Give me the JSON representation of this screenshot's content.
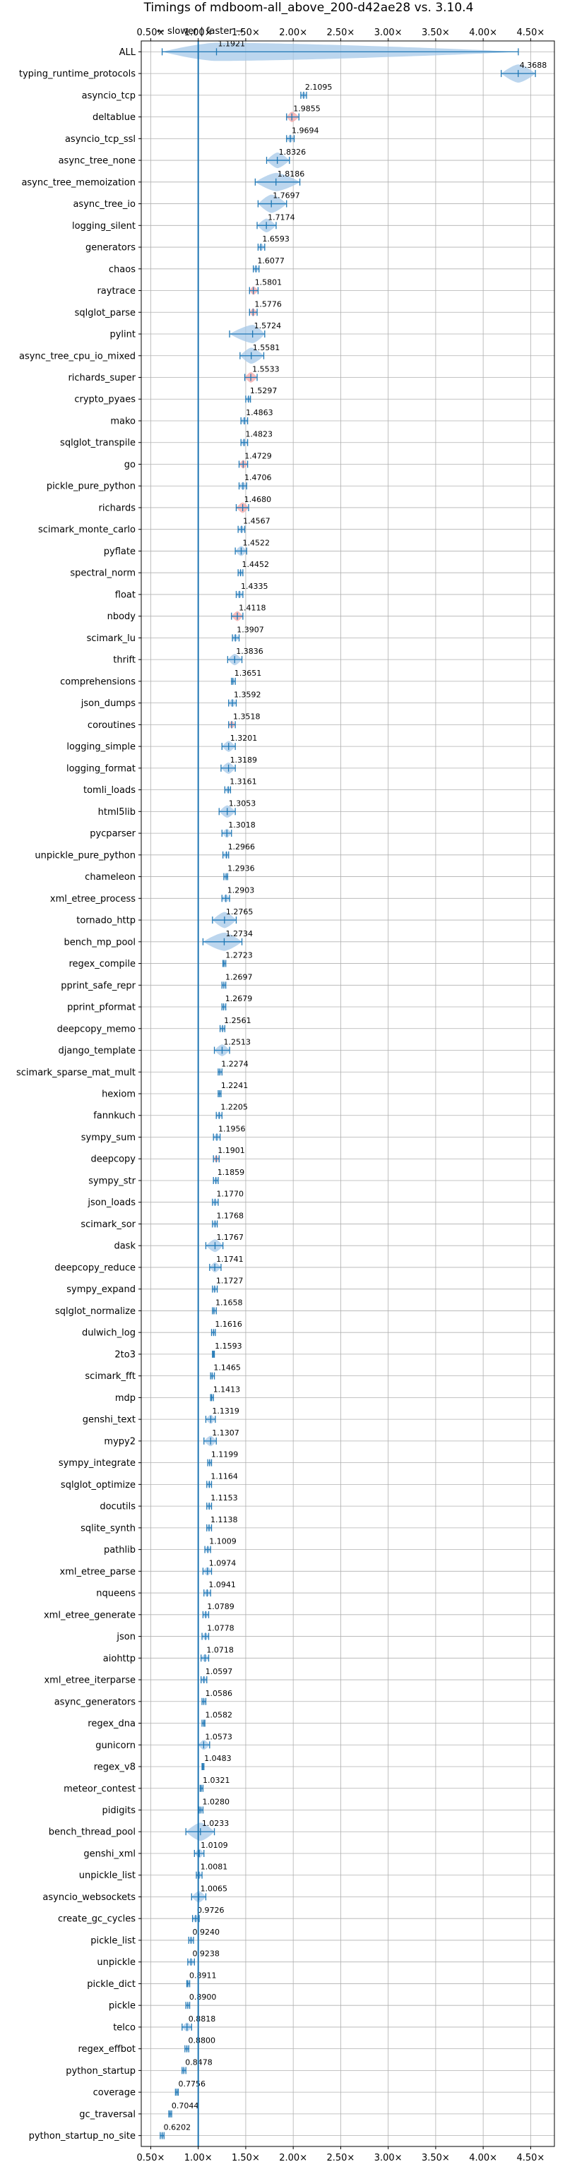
{
  "chart_data": {
    "type": "violin",
    "title": "Timings of mdboom-all_above_200-d42ae28 vs. 3.10.4",
    "direction_label": "← slower | faster →",
    "xlim": [
      0.4,
      4.75
    ],
    "xticks": [
      0.5,
      1.0,
      1.5,
      2.0,
      2.5,
      3.0,
      3.5,
      4.0,
      4.5
    ],
    "xtick_labels": [
      "0.50×",
      "1.00×",
      "1.50×",
      "2.00×",
      "2.50×",
      "3.00×",
      "3.50×",
      "4.00×",
      "4.50×"
    ],
    "reference_line": 1.0,
    "grid": true,
    "colors": {
      "violin": "#a6c8e8",
      "significant": "#f4a6a6",
      "bars": "#1f77b4",
      "grid": "#b0b0b0",
      "text": "#000000"
    },
    "categories": [
      "ALL",
      "typing_runtime_protocols",
      "asyncio_tcp",
      "deltablue",
      "asyncio_tcp_ssl",
      "async_tree_none",
      "async_tree_memoization",
      "async_tree_io",
      "logging_silent",
      "generators",
      "chaos",
      "raytrace",
      "sqlglot_parse",
      "pylint",
      "async_tree_cpu_io_mixed",
      "richards_super",
      "crypto_pyaes",
      "mako",
      "sqlglot_transpile",
      "go",
      "pickle_pure_python",
      "richards",
      "scimark_monte_carlo",
      "pyflate",
      "spectral_norm",
      "float",
      "nbody",
      "scimark_lu",
      "thrift",
      "comprehensions",
      "json_dumps",
      "coroutines",
      "logging_simple",
      "logging_format",
      "tomli_loads",
      "html5lib",
      "pycparser",
      "unpickle_pure_python",
      "chameleon",
      "xml_etree_process",
      "tornado_http",
      "bench_mp_pool",
      "regex_compile",
      "pprint_safe_repr",
      "pprint_pformat",
      "deepcopy_memo",
      "django_template",
      "scimark_sparse_mat_mult",
      "hexiom",
      "fannkuch",
      "sympy_sum",
      "deepcopy",
      "sympy_str",
      "json_loads",
      "scimark_sor",
      "dask",
      "deepcopy_reduce",
      "sympy_expand",
      "sqlglot_normalize",
      "dulwich_log",
      "2to3",
      "scimark_fft",
      "mdp",
      "genshi_text",
      "mypy2",
      "sympy_integrate",
      "sqlglot_optimize",
      "docutils",
      "sqlite_synth",
      "pathlib",
      "xml_etree_parse",
      "nqueens",
      "xml_etree_generate",
      "json",
      "aiohttp",
      "xml_etree_iterparse",
      "async_generators",
      "regex_dna",
      "gunicorn",
      "regex_v8",
      "meteor_contest",
      "pidigits",
      "bench_thread_pool",
      "genshi_xml",
      "unpickle_list",
      "asyncio_websockets",
      "create_gc_cycles",
      "pickle_list",
      "unpickle",
      "pickle_dict",
      "pickle",
      "telco",
      "regex_effbot",
      "python_startup",
      "coverage",
      "gc_traversal",
      "python_startup_no_site"
    ],
    "values": [
      1.1921,
      4.3688,
      2.1095,
      1.9855,
      1.9694,
      1.8326,
      1.8186,
      1.7697,
      1.7174,
      1.6593,
      1.6077,
      1.5801,
      1.5776,
      1.5724,
      1.5581,
      1.5533,
      1.5297,
      1.4863,
      1.4823,
      1.4729,
      1.4706,
      1.468,
      1.4567,
      1.4522,
      1.4452,
      1.4335,
      1.4118,
      1.3907,
      1.3836,
      1.3651,
      1.3592,
      1.3518,
      1.3201,
      1.3189,
      1.3161,
      1.3053,
      1.3018,
      1.2966,
      1.2936,
      1.2903,
      1.2765,
      1.2734,
      1.2723,
      1.2697,
      1.2679,
      1.2561,
      1.2513,
      1.2274,
      1.2241,
      1.2205,
      1.1956,
      1.1901,
      1.1859,
      1.177,
      1.1768,
      1.1767,
      1.1741,
      1.1727,
      1.1658,
      1.1616,
      1.1593,
      1.1465,
      1.1413,
      1.1319,
      1.1307,
      1.1199,
      1.1164,
      1.1153,
      1.1138,
      1.1009,
      1.0974,
      1.0941,
      1.0789,
      1.0778,
      1.0718,
      1.0597,
      1.0586,
      1.0582,
      1.0573,
      1.0483,
      1.0321,
      1.028,
      1.0233,
      1.0109,
      1.0081,
      1.0065,
      0.9726,
      0.924,
      0.9238,
      0.8911,
      0.89,
      0.8818,
      0.88,
      0.8478,
      0.7756,
      0.7044,
      0.6202
    ],
    "value_labels": [
      "1.1921",
      "4.3688",
      "2.1095",
      "1.9855",
      "1.9694",
      "1.8326",
      "1.8186",
      "1.7697",
      "1.7174",
      "1.6593",
      "1.6077",
      "1.5801",
      "1.5776",
      "1.5724",
      "1.5581",
      "1.5533",
      "1.5297",
      "1.4863",
      "1.4823",
      "1.4729",
      "1.4706",
      "1.4680",
      "1.4567",
      "1.4522",
      "1.4452",
      "1.4335",
      "1.4118",
      "1.3907",
      "1.3836",
      "1.3651",
      "1.3592",
      "1.3518",
      "1.3201",
      "1.3189",
      "1.3161",
      "1.3053",
      "1.3018",
      "1.2966",
      "1.2936",
      "1.2903",
      "1.2765",
      "1.2734",
      "1.2723",
      "1.2697",
      "1.2679",
      "1.2561",
      "1.2513",
      "1.2274",
      "1.2241",
      "1.2205",
      "1.1956",
      "1.1901",
      "1.1859",
      "1.1770",
      "1.1768",
      "1.1767",
      "1.1741",
      "1.1727",
      "1.1658",
      "1.1616",
      "1.1593",
      "1.1465",
      "1.1413",
      "1.1319",
      "1.1307",
      "1.1199",
      "1.1164",
      "1.1153",
      "1.1138",
      "1.1009",
      "1.0974",
      "1.0941",
      "1.0789",
      "1.0778",
      "1.0718",
      "1.0597",
      "1.0586",
      "1.0582",
      "1.0573",
      "1.0483",
      "1.0321",
      "1.0280",
      "1.0233",
      "1.0109",
      "1.0081",
      "1.0065",
      "0.9726",
      "0.9240",
      "0.9238",
      "0.8911",
      "0.8900",
      "0.8818",
      "0.8800",
      "0.8478",
      "0.7756",
      "0.7044",
      "0.6202"
    ],
    "ranges": [
      [
        0.62,
        4.37
      ],
      [
        4.19,
        4.55
      ],
      [
        2.08,
        2.14
      ],
      [
        1.93,
        2.06
      ],
      [
        1.93,
        2.01
      ],
      [
        1.72,
        1.96
      ],
      [
        1.6,
        2.07
      ],
      [
        1.63,
        1.93
      ],
      [
        1.62,
        1.82
      ],
      [
        1.63,
        1.7
      ],
      [
        1.58,
        1.64
      ],
      [
        1.54,
        1.63
      ],
      [
        1.54,
        1.62
      ],
      [
        1.33,
        1.7
      ],
      [
        1.44,
        1.69
      ],
      [
        1.49,
        1.62
      ],
      [
        1.5,
        1.55
      ],
      [
        1.45,
        1.52
      ],
      [
        1.45,
        1.52
      ],
      [
        1.43,
        1.52
      ],
      [
        1.43,
        1.51
      ],
      [
        1.4,
        1.53
      ],
      [
        1.42,
        1.49
      ],
      [
        1.39,
        1.51
      ],
      [
        1.42,
        1.47
      ],
      [
        1.4,
        1.47
      ],
      [
        1.35,
        1.47
      ],
      [
        1.36,
        1.43
      ],
      [
        1.31,
        1.46
      ],
      [
        1.35,
        1.39
      ],
      [
        1.32,
        1.4
      ],
      [
        1.32,
        1.39
      ],
      [
        1.25,
        1.39
      ],
      [
        1.24,
        1.39
      ],
      [
        1.28,
        1.34
      ],
      [
        1.22,
        1.39
      ],
      [
        1.25,
        1.35
      ],
      [
        1.26,
        1.32
      ],
      [
        1.27,
        1.31
      ],
      [
        1.25,
        1.33
      ],
      [
        1.15,
        1.4
      ],
      [
        1.05,
        1.46
      ],
      [
        1.26,
        1.29
      ],
      [
        1.25,
        1.29
      ],
      [
        1.25,
        1.29
      ],
      [
        1.23,
        1.28
      ],
      [
        1.17,
        1.33
      ],
      [
        1.21,
        1.25
      ],
      [
        1.21,
        1.24
      ],
      [
        1.19,
        1.25
      ],
      [
        1.16,
        1.23
      ],
      [
        1.16,
        1.22
      ],
      [
        1.16,
        1.21
      ],
      [
        1.15,
        1.21
      ],
      [
        1.15,
        1.2
      ],
      [
        1.08,
        1.26
      ],
      [
        1.12,
        1.24
      ],
      [
        1.15,
        1.2
      ],
      [
        1.15,
        1.19
      ],
      [
        1.14,
        1.18
      ],
      [
        1.15,
        1.17
      ],
      [
        1.13,
        1.17
      ],
      [
        1.13,
        1.16
      ],
      [
        1.08,
        1.18
      ],
      [
        1.06,
        1.19
      ],
      [
        1.1,
        1.14
      ],
      [
        1.09,
        1.14
      ],
      [
        1.09,
        1.14
      ],
      [
        1.09,
        1.14
      ],
      [
        1.07,
        1.13
      ],
      [
        1.05,
        1.14
      ],
      [
        1.06,
        1.13
      ],
      [
        1.05,
        1.11
      ],
      [
        1.04,
        1.11
      ],
      [
        1.03,
        1.11
      ],
      [
        1.03,
        1.09
      ],
      [
        1.04,
        1.08
      ],
      [
        1.04,
        1.07
      ],
      [
        1.0,
        1.12
      ],
      [
        1.04,
        1.06
      ],
      [
        1.02,
        1.05
      ],
      [
        1.01,
        1.05
      ],
      [
        0.87,
        1.17
      ],
      [
        0.96,
        1.06
      ],
      [
        0.98,
        1.04
      ],
      [
        0.93,
        1.08
      ],
      [
        0.94,
        1.01
      ],
      [
        0.9,
        0.95
      ],
      [
        0.89,
        0.96
      ],
      [
        0.88,
        0.91
      ],
      [
        0.87,
        0.91
      ],
      [
        0.83,
        0.93
      ],
      [
        0.86,
        0.9
      ],
      [
        0.83,
        0.87
      ],
      [
        0.76,
        0.79
      ],
      [
        0.69,
        0.72
      ],
      [
        0.6,
        0.64
      ]
    ],
    "significant": [
      false,
      false,
      false,
      true,
      false,
      false,
      false,
      false,
      false,
      false,
      false,
      true,
      true,
      false,
      false,
      true,
      false,
      false,
      false,
      true,
      false,
      true,
      false,
      false,
      false,
      false,
      true,
      false,
      false,
      false,
      false,
      true,
      false,
      false,
      false,
      false,
      false,
      false,
      false,
      false,
      false,
      false,
      false,
      false,
      false,
      false,
      false,
      false,
      false,
      false,
      false,
      true,
      false,
      false,
      false,
      false,
      false,
      false,
      false,
      false,
      false,
      false,
      false,
      false,
      false,
      false,
      false,
      false,
      false,
      false,
      false,
      false,
      false,
      false,
      false,
      false,
      false,
      false,
      false,
      false,
      false,
      false,
      false,
      false,
      false,
      false,
      false,
      false,
      false,
      false,
      false,
      false,
      false,
      false,
      false,
      false,
      false
    ]
  }
}
